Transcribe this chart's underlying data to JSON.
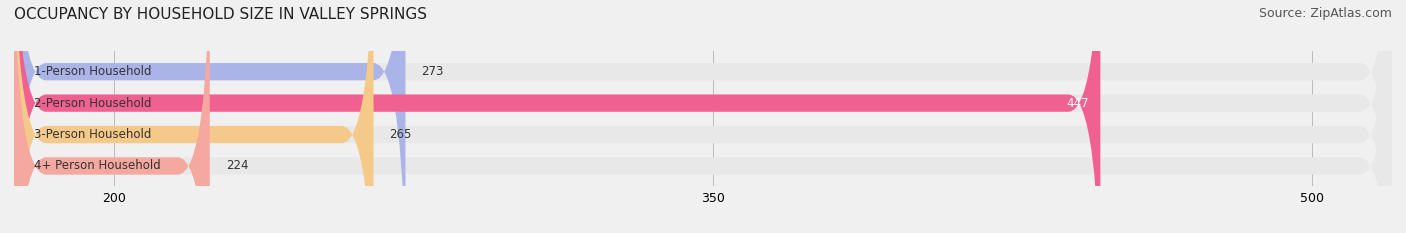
{
  "title": "OCCUPANCY BY HOUSEHOLD SIZE IN VALLEY SPRINGS",
  "source": "Source: ZipAtlas.com",
  "categories": [
    "1-Person Household",
    "2-Person Household",
    "3-Person Household",
    "4+ Person Household"
  ],
  "values": [
    273,
    447,
    265,
    224
  ],
  "bar_colors": [
    "#aab4e8",
    "#f06090",
    "#f5c98a",
    "#f5a8a0"
  ],
  "bar_label_colors": [
    "#333333",
    "#ffffff",
    "#333333",
    "#333333"
  ],
  "xlim": [
    175,
    520
  ],
  "xticks": [
    200,
    350,
    500
  ],
  "background_color": "#f0f0f0",
  "bar_bg_color": "#e8e8e8",
  "title_fontsize": 11,
  "source_fontsize": 9,
  "bar_height": 0.55,
  "figsize": [
    14.06,
    2.33
  ],
  "dpi": 100
}
